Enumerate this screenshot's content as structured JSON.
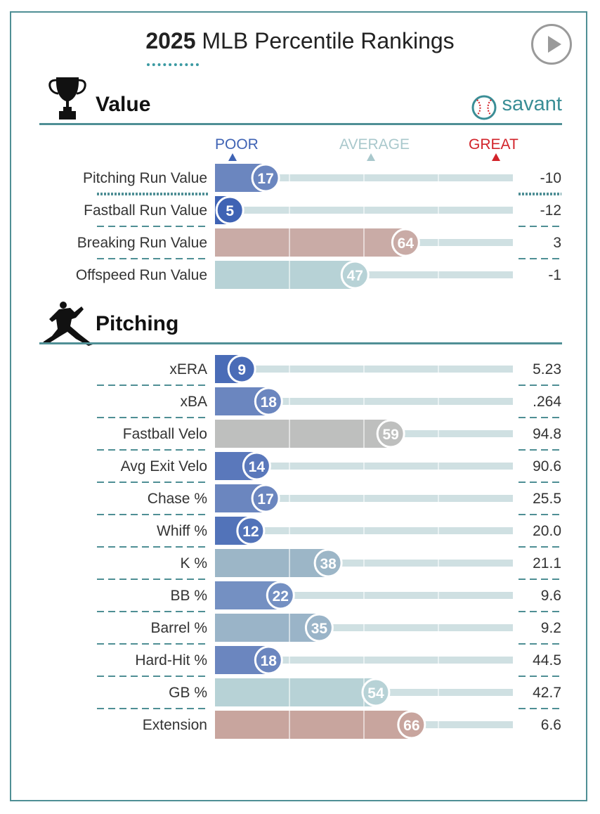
{
  "header": {
    "year": "2025",
    "title": "MLB Percentile Rankings",
    "play_icon": "play-icon"
  },
  "sections": [
    {
      "title": "Value",
      "icon": "trophy-icon"
    },
    {
      "title": "Pitching",
      "icon": "pitcher-icon"
    }
  ],
  "brand": {
    "label": "savant",
    "icon": "baseball-icon"
  },
  "scale": {
    "poor": "POOR",
    "average": "AVERAGE",
    "great": "GREAT"
  },
  "colors": {
    "poor": "#3f63b4",
    "great": "#d2232a",
    "average": "#a9c8cc",
    "teal": "#4f8f95",
    "track": "#cfe0e2"
  },
  "chart_data": {
    "type": "bar",
    "title": "2025 MLB Percentile Rankings",
    "xlim": [
      0,
      100
    ],
    "groups": [
      {
        "name": "Value",
        "categories": [
          "Pitching Run Value",
          "Fastball Run Value",
          "Breaking Run Value",
          "Offspeed Run Value"
        ],
        "percentiles": [
          17,
          5,
          64,
          47
        ],
        "stat_values": [
          "-10",
          "-12",
          "3",
          "-1"
        ],
        "bar_colors": [
          "#6b86bf",
          "#3f63b4",
          "#c9aba6",
          "#b7d2d6"
        ]
      },
      {
        "name": "Pitching",
        "categories": [
          "xERA",
          "xBA",
          "Fastball Velo",
          "Avg Exit Velo",
          "Chase %",
          "Whiff %",
          "K %",
          "BB %",
          "Barrel %",
          "Hard-Hit %",
          "GB %",
          "Extension"
        ],
        "percentiles": [
          9,
          18,
          59,
          14,
          17,
          12,
          38,
          22,
          35,
          18,
          54,
          66
        ],
        "stat_values": [
          "5.23",
          ".264",
          "94.8",
          "90.6",
          "25.5",
          "20.0",
          "21.1",
          "9.6",
          "9.2",
          "44.5",
          "42.7",
          "6.6"
        ],
        "bar_colors": [
          "#4a6cb7",
          "#6b86bf",
          "#bebfbe",
          "#5a78bb",
          "#6b86bf",
          "#5273b9",
          "#9cb6c7",
          "#7490c2",
          "#9ab4c8",
          "#6b86bf",
          "#b7d2d6",
          "#c8a59e"
        ]
      }
    ]
  }
}
